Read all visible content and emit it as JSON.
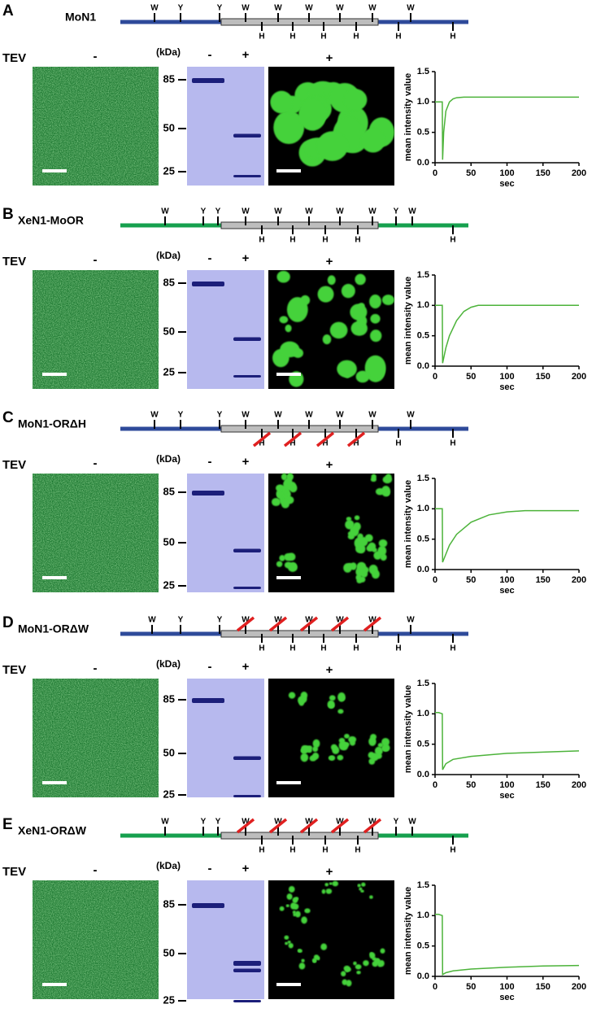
{
  "panels": [
    {
      "letter": "A",
      "name": "MoN1",
      "top_labels": [
        "W",
        "Y",
        "Y",
        "W",
        "W",
        "W",
        "W",
        "W",
        "W"
      ],
      "bottom_labels": [
        "H",
        "H",
        "H",
        "H",
        "H",
        "H"
      ],
      "tev": "TEV",
      "image_minus": "-",
      "kda": "(kDa)",
      "gel_minus": "-",
      "gel_plus": "+",
      "image_plus": "+",
      "gel_markers": [
        "85",
        "50",
        "25"
      ]
    },
    {
      "letter": "B",
      "name": "XeN1-MoOR",
      "top_labels": [
        "W",
        "Y",
        "Y",
        "W",
        "W",
        "W",
        "W",
        "W",
        "Y",
        "W"
      ],
      "bottom_labels": [
        "H",
        "H",
        "H",
        "H",
        "H"
      ],
      "tev": "TEV",
      "image_minus": "-",
      "kda": "(kDa)",
      "gel_minus": "-",
      "gel_plus": "+",
      "image_plus": "+",
      "gel_markers": [
        "85",
        "50",
        "25"
      ]
    },
    {
      "letter": "C",
      "name": "MoN1-ORΔH",
      "top_labels": [
        "W",
        "Y",
        "Y",
        "W",
        "W",
        "W",
        "W",
        "W",
        "W"
      ],
      "bottom_labels": [
        "H",
        "H",
        "H",
        "H",
        "H",
        "H"
      ],
      "tev": "TEV",
      "image_minus": "-",
      "kda": "(kDa)",
      "gel_minus": "-",
      "gel_plus": "+",
      "image_plus": "+",
      "gel_markers": [
        "85",
        "50",
        "25"
      ]
    },
    {
      "letter": "D",
      "name": "MoN1-ORΔW",
      "top_labels": [
        "W",
        "Y",
        "Y",
        "W",
        "W",
        "W",
        "W",
        "W",
        "W"
      ],
      "bottom_labels": [
        "H",
        "H",
        "H",
        "H",
        "H",
        "H"
      ],
      "tev": "TEV",
      "image_minus": "-",
      "kda": "(kDa)",
      "gel_minus": "-",
      "gel_plus": "+",
      "image_plus": "+",
      "gel_markers": [
        "85",
        "50",
        "25"
      ]
    },
    {
      "letter": "E",
      "name": "XeN1-ORΔW",
      "top_labels": [
        "W",
        "Y",
        "Y",
        "W",
        "W",
        "W",
        "W",
        "W",
        "Y",
        "W"
      ],
      "bottom_labels": [
        "H",
        "H",
        "H",
        "H",
        "H"
      ],
      "tev": "TEV",
      "image_minus": "-",
      "kda": "(kDa)",
      "gel_minus": "-",
      "gel_plus": "+",
      "image_plus": "+",
      "gel_markers": [
        "85",
        "50",
        "25"
      ]
    }
  ],
  "chart_data": [
    {
      "type": "line",
      "xlabel": "sec",
      "ylabel": "mean intensity value",
      "xlim": [
        0,
        200
      ],
      "ylim": [
        0,
        1.5
      ],
      "xticks": [
        0,
        50,
        100,
        150,
        200
      ],
      "yticks": [
        {
          "value": 0,
          "label": "0.0"
        },
        {
          "value": 0.5,
          "label": "0.5"
        },
        {
          "value": 1,
          "label": "1.0"
        },
        {
          "value": 1.5,
          "label": "1.5"
        }
      ],
      "x": [
        0,
        5,
        10,
        10.5,
        12,
        15,
        20,
        25,
        30,
        40,
        50,
        100,
        150,
        200
      ],
      "series": [
        {
          "color": "#4cb33a",
          "values": [
            1.0,
            1.0,
            1.0,
            0.05,
            0.5,
            0.85,
            1.0,
            1.05,
            1.07,
            1.08,
            1.08,
            1.08,
            1.08,
            1.08
          ]
        }
      ]
    },
    {
      "type": "line",
      "xlabel": "sec",
      "ylabel": "mean intensity value",
      "xlim": [
        0,
        200
      ],
      "ylim": [
        0,
        1.5
      ],
      "xticks": [
        0,
        50,
        100,
        150,
        200
      ],
      "yticks": [
        {
          "value": 0,
          "label": "0.0"
        },
        {
          "value": 0.5,
          "label": "0.5"
        },
        {
          "value": 1,
          "label": "1.0"
        },
        {
          "value": 1.5,
          "label": "1.5"
        }
      ],
      "x": [
        0,
        5,
        10,
        10.5,
        15,
        20,
        30,
        40,
        50,
        60,
        80,
        100,
        150,
        200
      ],
      "series": [
        {
          "color": "#4cb33a",
          "values": [
            1,
            1,
            1,
            0.05,
            0.3,
            0.5,
            0.75,
            0.9,
            0.97,
            1.0,
            1.0,
            1.0,
            1.0,
            1.0
          ]
        }
      ]
    },
    {
      "type": "line",
      "xlabel": "sec",
      "ylabel": "mean intensity value",
      "xlim": [
        0,
        200
      ],
      "ylim": [
        0,
        1.5
      ],
      "xticks": [
        0,
        50,
        100,
        150,
        200
      ],
      "yticks": [
        {
          "value": 0,
          "label": "0.0"
        },
        {
          "value": 0.5,
          "label": "0.5"
        },
        {
          "value": 1,
          "label": "1.0"
        },
        {
          "value": 1.5,
          "label": "1.5"
        }
      ],
      "x": [
        0,
        5,
        10,
        10.5,
        20,
        30,
        50,
        75,
        100,
        125,
        150,
        200
      ],
      "series": [
        {
          "color": "#4cb33a",
          "values": [
            1,
            1,
            1,
            0.12,
            0.4,
            0.58,
            0.78,
            0.9,
            0.95,
            0.97,
            0.97,
            0.97
          ]
        }
      ]
    },
    {
      "type": "line",
      "xlabel": "sec",
      "ylabel": "mean intensity value",
      "xlim": [
        0,
        200
      ],
      "ylim": [
        0,
        1.5
      ],
      "xticks": [
        0,
        50,
        100,
        150,
        200
      ],
      "yticks": [
        {
          "value": 0,
          "label": "0.0"
        },
        {
          "value": 0.5,
          "label": "0.5"
        },
        {
          "value": 1,
          "label": "1.0"
        },
        {
          "value": 1.5,
          "label": "1.5"
        }
      ],
      "x": [
        0,
        5,
        10,
        10.5,
        15,
        25,
        50,
        100,
        150,
        200
      ],
      "series": [
        {
          "color": "#4cb33a",
          "values": [
            1.02,
            1.02,
            1.0,
            0.08,
            0.18,
            0.25,
            0.3,
            0.35,
            0.37,
            0.39
          ]
        }
      ]
    },
    {
      "type": "line",
      "xlabel": "sec",
      "ylabel": "mean intensity value",
      "xlim": [
        0,
        200
      ],
      "ylim": [
        0,
        1.5
      ],
      "xticks": [
        0,
        50,
        100,
        150,
        200
      ],
      "yticks": [
        {
          "value": 0,
          "label": "0.0"
        },
        {
          "value": 0.5,
          "label": "0.5"
        },
        {
          "value": 1,
          "label": "1.0"
        },
        {
          "value": 1.5,
          "label": "1.5"
        }
      ],
      "x": [
        0,
        5,
        10,
        10.5,
        15,
        25,
        50,
        100,
        150,
        200
      ],
      "series": [
        {
          "color": "#4cb33a",
          "values": [
            1.02,
            1.02,
            1.0,
            0.03,
            0.06,
            0.09,
            0.12,
            0.15,
            0.17,
            0.18
          ]
        }
      ]
    }
  ]
}
